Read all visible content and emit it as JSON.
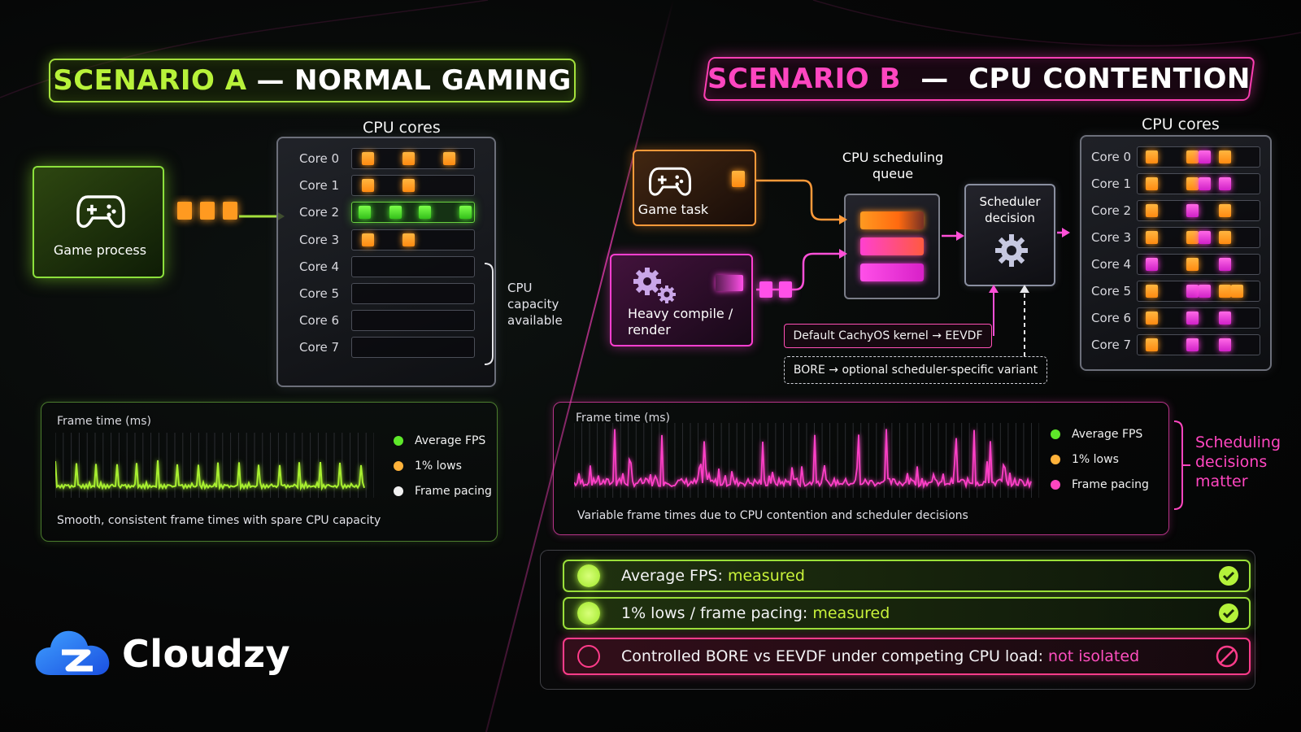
{
  "colors": {
    "green_accent": "#b8f23a",
    "pink_accent": "#ff46c0",
    "orange_block": "#ff9a20",
    "green_block": "#55ff30",
    "pink_block": "#ff40e0"
  },
  "scenario_a": {
    "title_prefix": "SCENARIO A",
    "title_dash": "—",
    "title_main": "NORMAL GAMING",
    "game_process_label": "Game process",
    "cores_title": "CPU cores",
    "cores": [
      {
        "label": "Core 0",
        "blocks": [
          "o",
          "o",
          "o"
        ],
        "active": false
      },
      {
        "label": "Core 1",
        "blocks": [
          "o",
          "o"
        ],
        "active": false
      },
      {
        "label": "Core 2",
        "blocks": [
          "g",
          "g",
          "g",
          "g"
        ],
        "active": true
      },
      {
        "label": "Core 3",
        "blocks": [
          "o",
          "o"
        ],
        "active": false
      },
      {
        "label": "Core 4",
        "blocks": [],
        "active": false
      },
      {
        "label": "Core 5",
        "blocks": [],
        "active": false
      },
      {
        "label": "Core 6",
        "blocks": [],
        "active": false
      },
      {
        "label": "Core 7",
        "blocks": [],
        "active": false
      }
    ],
    "capacity_note": [
      "CPU",
      "capacity",
      "available"
    ],
    "chart": {
      "title": "Frame time (ms)",
      "legend": [
        {
          "label": "Average FPS",
          "color": "#5ee82a"
        },
        {
          "label": "1% lows",
          "color": "#ffb23a"
        },
        {
          "label": "Frame pacing",
          "color": "#f0f0f0"
        }
      ],
      "caption": "Smooth, consistent frame times with spare CPU capacity"
    }
  },
  "scenario_b": {
    "title_prefix": "SCENARIO B",
    "title_dash": "—",
    "title_main": "CPU CONTENTION",
    "game_task_label": "Game task",
    "heavy_label": [
      "Heavy compile /",
      "render"
    ],
    "queue_label": [
      "CPU scheduling",
      "queue"
    ],
    "scheduler_label": [
      "Scheduler",
      "decision"
    ],
    "kernel_note": "Default CachyOS kernel → EEVDF",
    "bore_note": "BORE → optional scheduler-specific variant",
    "cores_title": "CPU cores",
    "cores": [
      {
        "label": "Core 0",
        "blocks": [
          "o",
          "op",
          "o"
        ]
      },
      {
        "label": "Core 1",
        "blocks": [
          "o",
          "op",
          "p"
        ]
      },
      {
        "label": "Core 2",
        "blocks": [
          "o",
          "p",
          "o"
        ]
      },
      {
        "label": "Core 3",
        "blocks": [
          "o",
          "op",
          "o"
        ]
      },
      {
        "label": "Core 4",
        "blocks": [
          "p",
          "o",
          "p"
        ]
      },
      {
        "label": "Core 5",
        "blocks": [
          "o",
          "pp",
          "oo"
        ]
      },
      {
        "label": "Core 6",
        "blocks": [
          "o",
          "p",
          "p"
        ]
      },
      {
        "label": "Core 7",
        "blocks": [
          "o",
          "p",
          "p"
        ]
      }
    ],
    "chart": {
      "title": "Frame time (ms)",
      "legend": [
        {
          "label": "Average FPS",
          "color": "#5ee82a"
        },
        {
          "label": "1% lows",
          "color": "#ffb23a"
        },
        {
          "label": "Frame pacing",
          "color": "#ff46c0"
        }
      ],
      "caption": "Variable frame times due to CPU contention and scheduler decisions"
    },
    "matter_note": [
      "Scheduling",
      "decisions",
      "matter"
    ]
  },
  "status": [
    {
      "label": "Average FPS: ",
      "value": "measured",
      "state": "ok"
    },
    {
      "label": "1% lows / frame pacing: ",
      "value": "measured",
      "state": "ok"
    },
    {
      "label": "Controlled BORE vs EEVDF under competing CPU load: ",
      "value": "not isolated",
      "state": "bad"
    }
  ],
  "brand": {
    "name": "Cloudzy"
  }
}
